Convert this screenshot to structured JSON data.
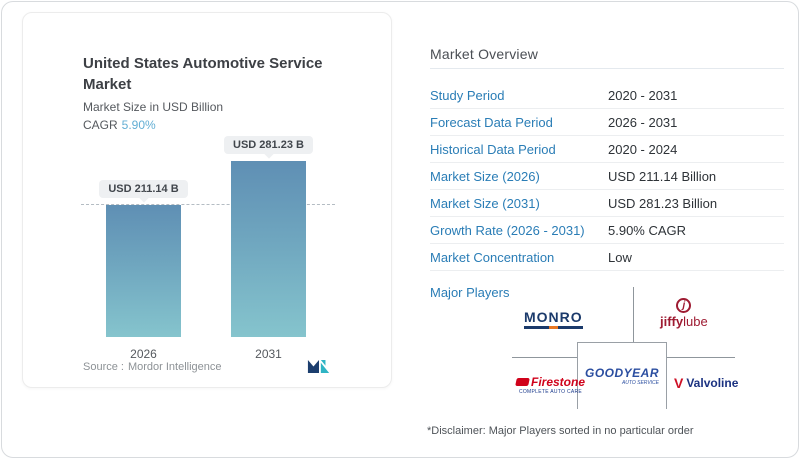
{
  "chart_card": {
    "title": "United States Automotive Service Market",
    "subtitle": "Market Size in USD Billion",
    "cagr_label": "CAGR",
    "cagr_value": "5.90%",
    "source_label": "Source :",
    "source_value": "Mordor Intelligence"
  },
  "chart_data": {
    "type": "bar",
    "title": "United States Automotive Service Market",
    "ylabel": "Market Size in USD Billion",
    "categories": [
      "2026",
      "2031"
    ],
    "values": [
      211.14,
      281.23
    ],
    "bar_labels": [
      "USD 211.14 B",
      "USD 281.23 B"
    ],
    "ylim": [
      0,
      281.23
    ],
    "grid": false,
    "reference_line_value": 211.14,
    "colors": {
      "bar_top": "#5f8fb4",
      "bar_bottom": "#85c4cd",
      "dashed_line": "#b4bcc3"
    }
  },
  "overview": {
    "heading": "Market Overview",
    "rows": [
      {
        "label": "Study Period",
        "value": "2020 - 2031"
      },
      {
        "label": "Forecast Data Period",
        "value": "2026 - 2031"
      },
      {
        "label": "Historical Data Period",
        "value": "2020 - 2024"
      },
      {
        "label": "Market Size (2026)",
        "value": "USD 211.14 Billion"
      },
      {
        "label": "Market Size (2031)",
        "value": "USD 281.23 Billion"
      },
      {
        "label": "Growth Rate (2026 - 2031)",
        "value": "5.90% CAGR"
      },
      {
        "label": "Market Concentration",
        "value": "Low"
      }
    ],
    "major_players_label": "Major Players",
    "players": {
      "monro": {
        "text": "MONRO"
      },
      "jiffylube": {
        "icon_letter": "j",
        "word_bold": "jiffy",
        "word_light": "lube"
      },
      "goodyear": {
        "text": "GOODYEAR",
        "sub": "AUTO SERVICE"
      },
      "firestone": {
        "text": "Firestone",
        "sub": "COMPLETE AUTO CARE"
      },
      "valvoline": {
        "mark": "V",
        "text": "Valvoline"
      }
    },
    "disclaimer": "*Disclaimer: Major Players sorted in no particular order"
  },
  "colors": {
    "accent_blue": "#2a7db6",
    "cagr_blue": "#62aed4",
    "monro_navy": "#1b3a6b",
    "jiffy_crimson": "#9e1b32",
    "goodyear_blue": "#2b4ea0",
    "firestone_red": "#d0021b",
    "valvoline_navy": "#1b3281",
    "valvoline_red": "#ce1126",
    "mordor_navy": "#1c3e6e",
    "mordor_teal": "#2fb4c4"
  }
}
